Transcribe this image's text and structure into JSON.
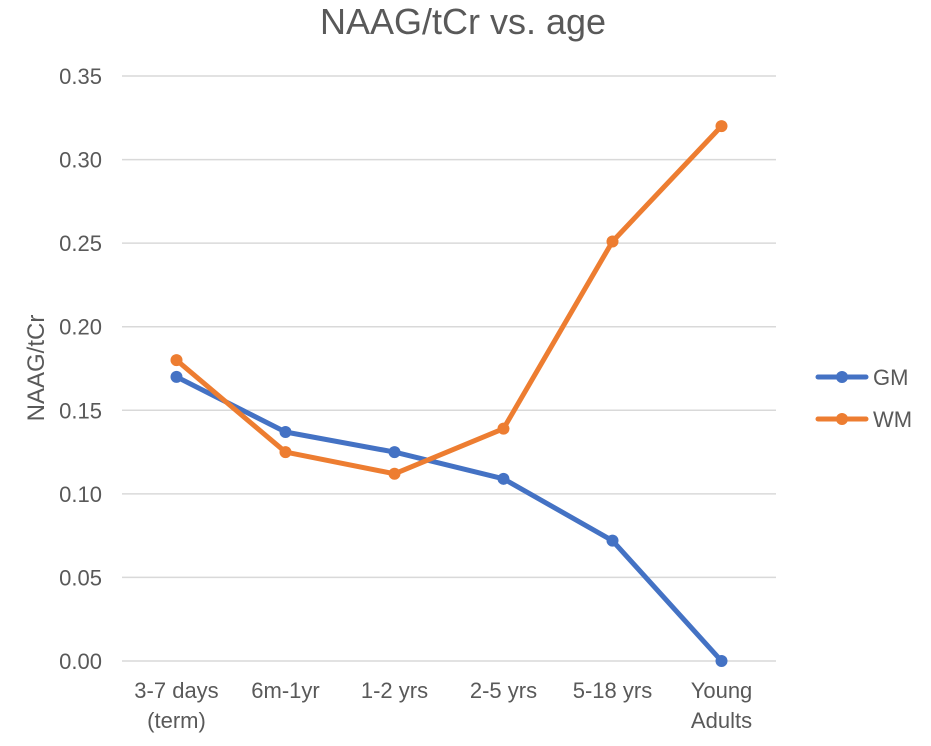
{
  "chart_data": {
    "type": "line",
    "title": "NAAG/tCr vs. age",
    "xlabel": "",
    "ylabel": "NAAG/tCr",
    "categories": [
      [
        "3-7 days",
        "(term)"
      ],
      [
        "6m-1yr"
      ],
      [
        "1-2 yrs"
      ],
      [
        "2-5 yrs"
      ],
      [
        "5-18 yrs"
      ],
      [
        "Young",
        "Adults"
      ]
    ],
    "ylim": [
      0,
      0.35
    ],
    "yticks": [
      "0.00",
      "0.05",
      "0.10",
      "0.15",
      "0.20",
      "0.25",
      "0.30",
      "0.35"
    ],
    "ytick_values": [
      0,
      0.05,
      0.1,
      0.15,
      0.2,
      0.25,
      0.3,
      0.35
    ],
    "grid": true,
    "legend_position": "right",
    "series": [
      {
        "name": "GM",
        "color": "#4472c4",
        "values": [
          0.17,
          0.137,
          0.125,
          0.109,
          0.072,
          0.0
        ]
      },
      {
        "name": "WM",
        "color": "#ed7d31",
        "values": [
          0.18,
          0.125,
          0.112,
          0.139,
          0.251,
          0.32
        ]
      }
    ]
  }
}
